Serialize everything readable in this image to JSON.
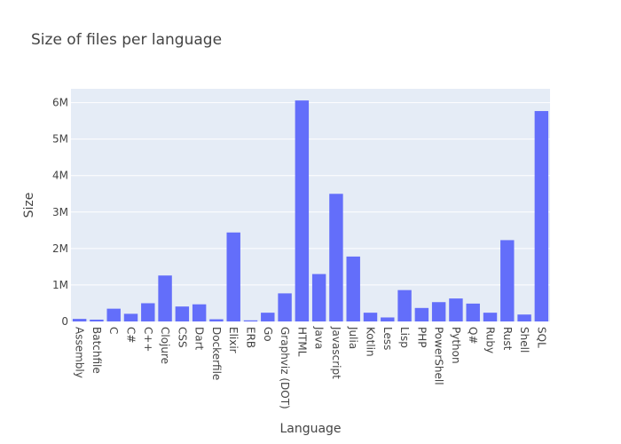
{
  "chart_data": {
    "type": "bar",
    "title": "Size of files per language",
    "xlabel": "Language",
    "ylabel": "Size",
    "categories": [
      "Assembly",
      "Batchfile",
      "C",
      "C#",
      "C++",
      "Clojure",
      "CSS",
      "Dart",
      "Dockerfile",
      "Elixir",
      "ERB",
      "Go",
      "Graphviz (DOT)",
      "HTML",
      "Java",
      "Javascript",
      "Julia",
      "Kotlin",
      "Less",
      "Lisp",
      "PHP",
      "PowerShell",
      "Python",
      "Q#",
      "Ruby",
      "Rust",
      "Shell",
      "SQL"
    ],
    "values": [
      70000,
      50000,
      350000,
      210000,
      500000,
      1260000,
      410000,
      470000,
      60000,
      2440000,
      30000,
      240000,
      770000,
      6060000,
      1300000,
      3500000,
      1780000,
      240000,
      110000,
      860000,
      370000,
      530000,
      630000,
      490000,
      240000,
      2230000,
      190000,
      5770000
    ],
    "ylim": [
      0,
      6380000
    ],
    "yticks": [
      {
        "value": 0,
        "label": "0"
      },
      {
        "value": 1000000,
        "label": "1M"
      },
      {
        "value": 2000000,
        "label": "2M"
      },
      {
        "value": 3000000,
        "label": "3M"
      },
      {
        "value": 4000000,
        "label": "4M"
      },
      {
        "value": 5000000,
        "label": "5M"
      },
      {
        "value": 6000000,
        "label": "6M"
      }
    ],
    "grid": true,
    "colors": {
      "bar": "#636efa",
      "plot_background": "#e5ecf6",
      "grid": "#ffffff",
      "text": "#444444"
    }
  }
}
